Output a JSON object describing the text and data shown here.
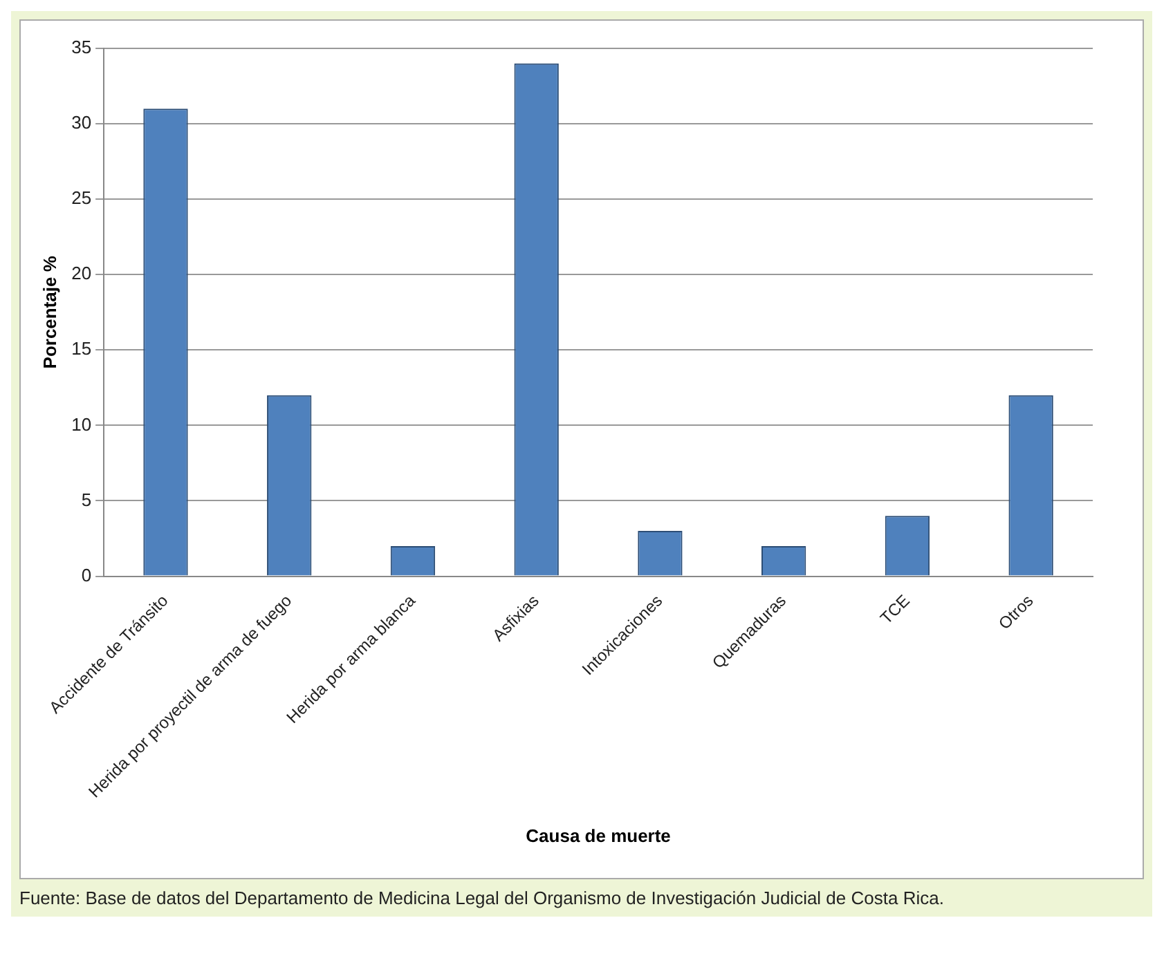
{
  "chart_data": {
    "type": "bar",
    "xlabel": "Causa de muerte",
    "ylabel": "Porcentaje %",
    "categories": [
      "Accidente de Tránsito",
      "Herida por proyectil de arma de fuego",
      "Herida por arma blanca",
      "Asfixias",
      "Intoxicaciones",
      "Quemaduras",
      "TCE",
      "Otros"
    ],
    "values": [
      31,
      12,
      2,
      34,
      3,
      2,
      4,
      12
    ],
    "color": "#4f81bd",
    "ylim": [
      0,
      35
    ],
    "yticks": [
      0,
      5,
      10,
      15,
      20,
      25,
      30,
      35
    ],
    "grid": "y",
    "legend": false,
    "annotations": [
      "Fuente: Base de datos del Departamento de Medicina Legal del Organismo de Investigación Judicial de Costa Rica."
    ]
  }
}
